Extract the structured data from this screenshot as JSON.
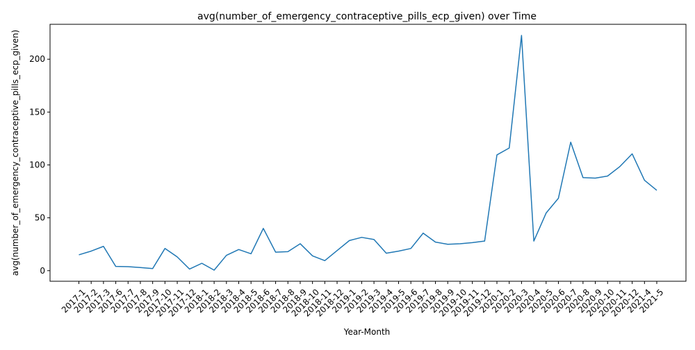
{
  "chart_data": {
    "type": "line",
    "title": "avg(number_of_emergency_contraceptive_pills_ecp_given) over Time",
    "xlabel": "Year-Month",
    "ylabel": "avg(number_of_emergency_contraceptive_pills_ecp_given)",
    "ylim": [
      -10,
      233
    ],
    "yticks": [
      0,
      50,
      100,
      150,
      200
    ],
    "grid": false,
    "line_color": "#1f77b4",
    "categories": [
      "2017-1",
      "2017-2",
      "2017-3",
      "2017-6",
      "2017-7",
      "2017-8",
      "2017-9",
      "2017-10",
      "2017-11",
      "2017-12",
      "2018-1",
      "2018-2",
      "2018-3",
      "2018-4",
      "2018-5",
      "2018-6",
      "2018-7",
      "2018-8",
      "2018-9",
      "2018-10",
      "2018-11",
      "2018-12",
      "2019-1",
      "2019-2",
      "2019-3",
      "2019-4",
      "2019-5",
      "2019-6",
      "2019-7",
      "2019-8",
      "2019-9",
      "2019-10",
      "2019-11",
      "2019-12",
      "2020-1",
      "2020-2",
      "2020-3",
      "2020-4",
      "2020-5",
      "2020-6",
      "2020-7",
      "2020-8",
      "2020-9",
      "2020-10",
      "2020-11",
      "2020-12",
      "2021-4",
      "2021-5"
    ],
    "values": [
      15,
      18.5,
      23,
      4,
      3.8,
      3,
      2,
      21,
      13,
      1.5,
      7,
      0.5,
      14.5,
      20,
      16,
      40,
      17.5,
      18,
      25.5,
      14,
      9.5,
      19,
      28.5,
      31.5,
      29.5,
      16.5,
      18.5,
      21,
      35.5,
      27,
      25,
      25.5,
      26.5,
      28,
      109.5,
      116,
      222.5,
      28,
      54.5,
      68.5,
      121.5,
      88,
      87.5,
      89.5,
      98.5,
      110.5,
      85.5,
      76
    ]
  }
}
